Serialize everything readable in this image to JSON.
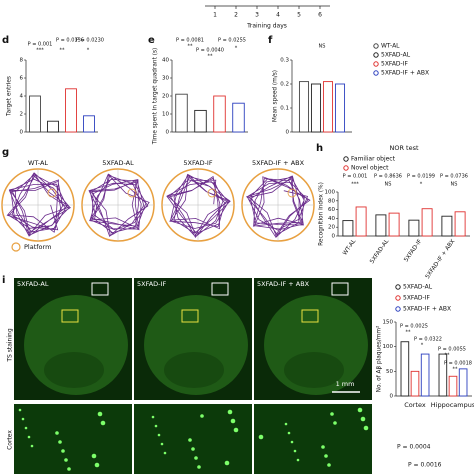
{
  "figure": {
    "top_axis": {
      "label": "Training days",
      "ticks": [
        1,
        2,
        3,
        4,
        5,
        6
      ]
    },
    "panel_g": {
      "panel": "g",
      "labels": [
        "WT-AL",
        "5XFAD-AL",
        "5XFAD-IF",
        "5XFAD-IF + ABX"
      ],
      "legend": "Platform"
    },
    "panel_i": {
      "panel": "i",
      "labels": [
        "5XFAD-AL",
        "5XFAD-IF",
        "5XFAD-IF + ABX"
      ],
      "row_labels": [
        "TS staining",
        "Cortex"
      ],
      "scale_bar": "1 mm"
    },
    "bottom_annotations": [
      "P = 0.0004",
      "P = 0.0016"
    ]
  },
  "chart_data": [
    {
      "type": "bar",
      "panel": "d",
      "ylabel": "Target entries",
      "categories": [
        null,
        null,
        null,
        null
      ],
      "values": [
        4,
        1.2,
        4.8,
        1.8
      ],
      "colors": [
        "#444444",
        "#222222",
        "#e0312f",
        "#2b3fbf"
      ],
      "ylim": [
        0,
        8
      ],
      "yticks": [
        0,
        2,
        4,
        6,
        8
      ],
      "annotations": [
        "P = 0.001",
        "***",
        "P = 0.0136",
        "P = 0.0230",
        "**",
        "*"
      ]
    },
    {
      "type": "bar",
      "panel": "e",
      "ylabel": "Time spent in target quadrant (s)",
      "categories": [
        null,
        null,
        null,
        null
      ],
      "values": [
        21,
        12,
        20,
        16
      ],
      "colors": [
        "#444444",
        "#222222",
        "#e0312f",
        "#2b3fbf"
      ],
      "ylim": [
        0,
        40
      ],
      "yticks": [
        0,
        10,
        20,
        30,
        40
      ],
      "annotations": [
        "P = 0.0081",
        "**",
        "P = 0.0255",
        "P = 0.0040",
        "**",
        "*"
      ]
    },
    {
      "type": "bar",
      "panel": "f",
      "ylabel": "Mean speed (m/s)",
      "categories": [
        null
      ],
      "ylim": [
        0,
        0.3
      ],
      "yticks": [
        0,
        0.1,
        0.2,
        0.3
      ],
      "legend": "right",
      "series": [
        {
          "name": "WT-AL",
          "color": "#444444",
          "values": [
            0.21
          ]
        },
        {
          "name": "5XFAD-AL",
          "color": "#222222",
          "values": [
            0.2
          ]
        },
        {
          "name": "5XFAD-IF",
          "color": "#e0312f",
          "values": [
            0.21
          ]
        },
        {
          "name": "5XFAD-IF + ABX",
          "color": "#2b3fbf",
          "values": [
            0.2
          ]
        }
      ],
      "annotations": [
        "NS"
      ]
    },
    {
      "type": "bar",
      "panel": "h",
      "title": "NOR test",
      "ylabel": "Recognition index (%)",
      "categories": [
        "WT-AL",
        "5XFAD-AL",
        "5XFAD-IF",
        "5XFAD-IF + ABX"
      ],
      "ylim": [
        0,
        100
      ],
      "yticks": [
        0,
        20,
        40,
        60,
        80,
        100
      ],
      "legend": "top-left",
      "series": [
        {
          "name": "Familiar object",
          "color": "#222222",
          "values": [
            35,
            48,
            36,
            45
          ]
        },
        {
          "name": "Novel object",
          "color": "#e0312f",
          "values": [
            66,
            52,
            62,
            55
          ]
        }
      ],
      "annotations": [
        "P = 0.001",
        "***",
        "P = 0.8636",
        "NS",
        "P = 0.0199",
        "*",
        "P = 0.0736",
        "NS"
      ]
    },
    {
      "type": "bar",
      "ylabel": "No. of Aβ plaques/mm²",
      "categories": [
        "Cortex",
        "Hippocampus"
      ],
      "ylim": [
        0,
        150
      ],
      "yticks": [
        0,
        50,
        100,
        150
      ],
      "legend": "top",
      "series": [
        {
          "name": "5XFAD-AL",
          "color": "#222222",
          "values": [
            110,
            85
          ]
        },
        {
          "name": "5XFAD-IF",
          "color": "#e0312f",
          "values": [
            50,
            40
          ]
        },
        {
          "name": "5XFAD-IF + ABX",
          "color": "#2b3fbf",
          "values": [
            85,
            55
          ]
        }
      ],
      "annotations": [
        "P = 0.0025",
        "**",
        "P = 0.0322",
        "*",
        "P = 0.0055",
        "**",
        "P = 0.0018",
        "**"
      ]
    }
  ]
}
